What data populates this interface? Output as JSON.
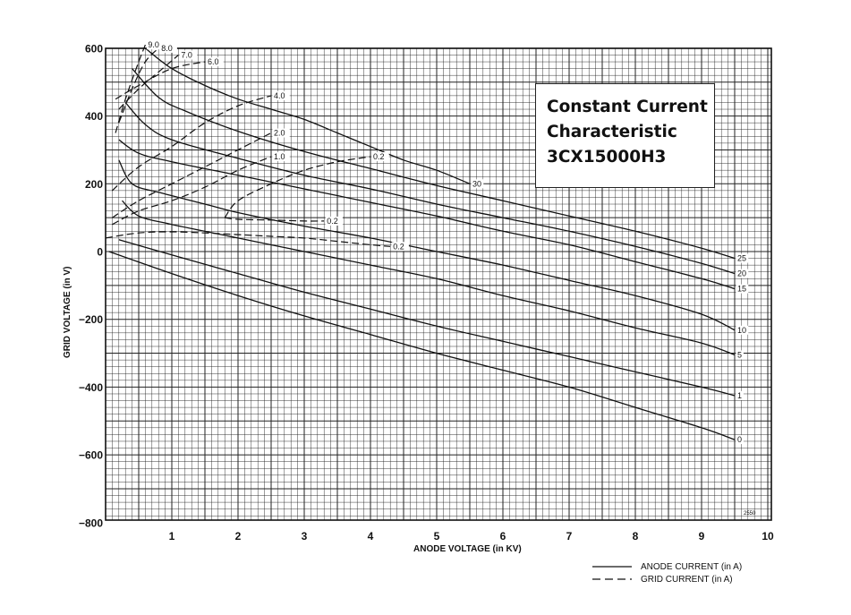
{
  "title_lines": [
    "Constant Current",
    "Characteristic",
    "3CX15000H3"
  ],
  "chart_data": {
    "type": "line",
    "xlabel": "ANODE VOLTAGE (in KV)",
    "ylabel": "GRID VOLTAGE (in V)",
    "xlim": [
      0,
      10
    ],
    "ylim": [
      -800,
      600
    ],
    "x_ticks": [
      1,
      2,
      3,
      4,
      5,
      6,
      7,
      8,
      9,
      10
    ],
    "y_ticks": [
      600,
      400,
      200,
      0,
      -200,
      -400,
      -600,
      -800
    ],
    "grid": true,
    "legend": {
      "placement": "bottom-right",
      "entries": [
        {
          "style": "solid",
          "label": "ANODE CURRENT (in A)"
        },
        {
          "style": "dashed",
          "label": "GRID CURRENT (in A)"
        }
      ]
    },
    "figure_code": "2550",
    "anode_current_series": [
      {
        "label": "0",
        "x": [
          0.05,
          1.0,
          2.0,
          3.0,
          4.0,
          5.0,
          6.0,
          7.0,
          8.0,
          9.0,
          9.5
        ],
        "y": [
          0,
          -65,
          -130,
          -190,
          -245,
          -300,
          -350,
          -400,
          -460,
          -520,
          -555
        ]
      },
      {
        "label": "1",
        "x": [
          0.2,
          1.0,
          2.0,
          3.0,
          4.0,
          5.0,
          6.0,
          7.0,
          8.0,
          9.0,
          9.5
        ],
        "y": [
          35,
          -10,
          -65,
          -120,
          -170,
          -220,
          -265,
          -310,
          -355,
          -400,
          -425
        ]
      },
      {
        "label": "5",
        "x": [
          0.25,
          0.5,
          1.0,
          2.0,
          3.0,
          4.0,
          5.0,
          6.0,
          7.0,
          8.0,
          9.0,
          9.5
        ],
        "y": [
          150,
          105,
          80,
          40,
          0,
          -40,
          -80,
          -130,
          -175,
          -225,
          -270,
          -305
        ]
      },
      {
        "label": "10",
        "x": [
          0.2,
          0.4,
          0.8,
          1.5,
          2.0,
          3.0,
          4.0,
          5.0,
          6.0,
          7.0,
          8.0,
          9.0,
          9.5
        ],
        "y": [
          270,
          200,
          175,
          140,
          115,
          75,
          40,
          0,
          -40,
          -85,
          -130,
          -185,
          -232
        ]
      },
      {
        "label": "15",
        "x": [
          0.2,
          0.5,
          1.0,
          2.0,
          3.0,
          4.0,
          5.0,
          6.0,
          7.0,
          8.0,
          9.0,
          9.5
        ],
        "y": [
          330,
          290,
          265,
          225,
          185,
          145,
          105,
          60,
          20,
          -30,
          -80,
          -110
        ]
      },
      {
        "label": "20",
        "x": [
          0.3,
          0.6,
          1.0,
          2.0,
          3.0,
          4.0,
          5.0,
          6.0,
          7.0,
          8.0,
          9.0,
          9.5
        ],
        "y": [
          440,
          375,
          330,
          275,
          225,
          185,
          140,
          100,
          60,
          15,
          -35,
          -65
        ]
      },
      {
        "label": "25",
        "x": [
          0.4,
          0.8,
          1.2,
          2.0,
          3.0,
          4.0,
          5.0,
          6.0,
          7.0,
          8.0,
          9.0,
          9.5
        ],
        "y": [
          540,
          455,
          415,
          355,
          295,
          245,
          195,
          150,
          105,
          60,
          10,
          -20
        ]
      },
      {
        "label": "30",
        "x": [
          0.6,
          1.0,
          1.5,
          2.0,
          2.5,
          3.0,
          3.5,
          4.0,
          4.5,
          5.0,
          5.5
        ],
        "y": [
          600,
          540,
          490,
          450,
          420,
          390,
          350,
          310,
          270,
          240,
          200
        ]
      }
    ],
    "grid_current_series": [
      {
        "label": "9.0",
        "x": [
          0.15,
          0.3,
          0.5,
          0.6
        ],
        "y": [
          350,
          450,
          560,
          610
        ]
      },
      {
        "label": "8.0",
        "x": [
          0.2,
          0.4,
          0.6,
          0.8
        ],
        "y": [
          380,
          480,
          560,
          600
        ]
      },
      {
        "label": "7.0",
        "x": [
          0.2,
          0.5,
          0.8,
          1.1
        ],
        "y": [
          420,
          480,
          530,
          580
        ]
      },
      {
        "label": "6.0",
        "x": [
          0.15,
          0.5,
          1.0,
          1.5
        ],
        "y": [
          450,
          490,
          540,
          560
        ]
      },
      {
        "label": "4.0",
        "x": [
          0.1,
          0.5,
          1.0,
          1.5,
          2.0,
          2.5
        ],
        "y": [
          180,
          250,
          310,
          380,
          430,
          460
        ]
      },
      {
        "label": "2.0",
        "x": [
          0.1,
          0.5,
          1.0,
          1.5,
          2.0,
          2.5
        ],
        "y": [
          100,
          150,
          200,
          250,
          300,
          350
        ]
      },
      {
        "label": "1.0",
        "x": [
          0.1,
          0.5,
          1.0,
          1.5,
          2.0,
          2.5
        ],
        "y": [
          80,
          120,
          150,
          190,
          240,
          280
        ]
      },
      {
        "label": "0.2",
        "x": [
          1.8,
          2.0,
          2.5,
          3.0,
          3.5,
          4.0
        ],
        "y": [
          100,
          150,
          200,
          240,
          265,
          280
        ]
      },
      {
        "label": "0.2",
        "x": [
          1.8,
          2.0,
          2.5,
          3.0,
          3.3
        ],
        "y": [
          100,
          95,
          93,
          90,
          90
        ]
      },
      {
        "label": "0.2",
        "x": [
          0.0,
          0.5,
          1.0,
          1.5,
          2.0,
          2.5,
          3.0,
          3.5,
          4.0,
          4.3
        ],
        "y": [
          40,
          55,
          58,
          55,
          50,
          45,
          40,
          30,
          20,
          15
        ]
      }
    ]
  }
}
